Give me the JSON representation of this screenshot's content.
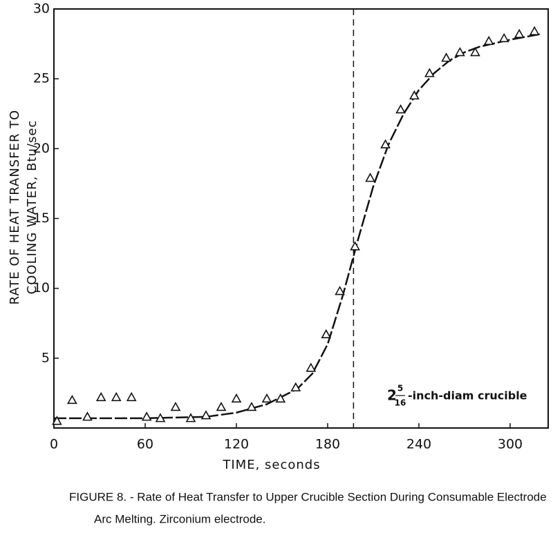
{
  "chart_data": {
    "type": "scatter",
    "y_label_lines": [
      "RATE OF HEAT TRANSFER TO",
      "COOLING WATER, Btu/sec"
    ],
    "x_label": "TIME, seconds",
    "caption_lines": [
      "FIGURE 8. - Rate of Heat Transfer to Upper Crucible Section During Consumable Electrode",
      "Arc Melting.  Zirconium electrode."
    ],
    "annotation": {
      "whole": "2",
      "numerator": "5",
      "denominator": "16",
      "text": "-inch-diam crucible"
    },
    "xlim": [
      0,
      325
    ],
    "ylim": [
      0,
      30
    ],
    "xticks": [
      0,
      60,
      120,
      180,
      240,
      300
    ],
    "yticks": [
      5,
      10,
      15,
      20,
      25,
      30
    ],
    "vline_x": 197,
    "series": [
      {
        "type": "scatter",
        "color": "#111111",
        "x": [
          2,
          12,
          22,
          31,
          41,
          51,
          61,
          70,
          80,
          90,
          100,
          110,
          120,
          130,
          140,
          149,
          159,
          169,
          179,
          188,
          198,
          208,
          218,
          228,
          237,
          247,
          258,
          267,
          277,
          286,
          296,
          306,
          316
        ],
        "values": [
          0.5,
          2.0,
          0.8,
          2.2,
          2.2,
          2.2,
          0.8,
          0.7,
          1.5,
          0.7,
          0.9,
          1.5,
          2.1,
          1.5,
          2.1,
          2.1,
          2.9,
          4.3,
          6.7,
          9.8,
          13.0,
          17.9,
          20.3,
          22.8,
          23.8,
          25.4,
          26.5,
          26.9,
          26.9,
          27.7,
          27.9,
          28.2,
          28.4
        ]
      },
      {
        "type": "line",
        "color": "#111111",
        "x": [
          0,
          60,
          100,
          120,
          140,
          160,
          170,
          180,
          190,
          200,
          210,
          220,
          230,
          240,
          250,
          260,
          270,
          280,
          300,
          320
        ],
        "values": [
          0.7,
          0.7,
          0.8,
          1.1,
          1.7,
          2.8,
          3.9,
          6.0,
          9.5,
          13.5,
          17.3,
          20.3,
          22.5,
          24.2,
          25.4,
          26.3,
          26.9,
          27.3,
          27.8,
          28.2
        ]
      }
    ]
  }
}
